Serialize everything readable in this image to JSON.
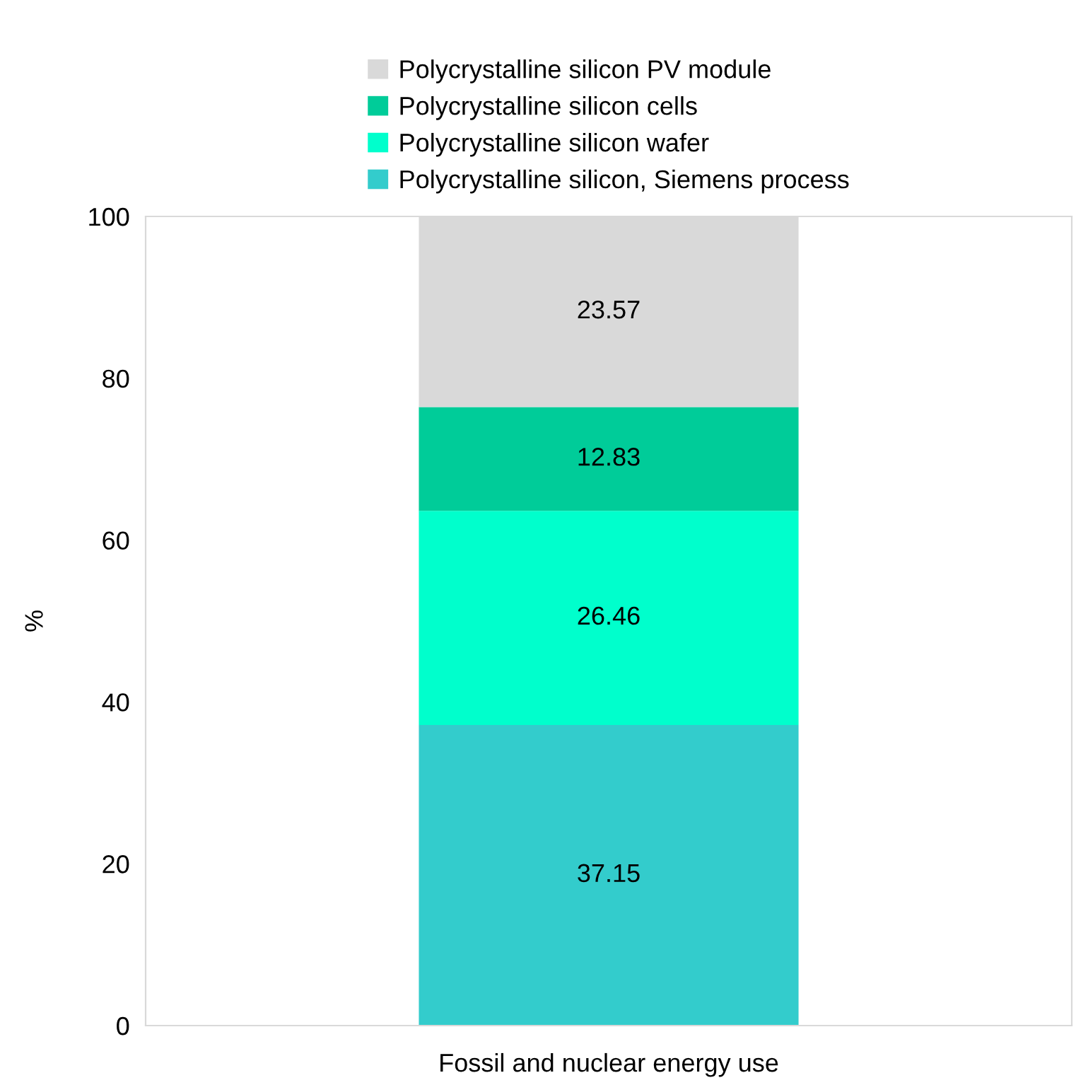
{
  "chart_data": {
    "type": "bar",
    "stacked": true,
    "ylabel": "%",
    "categories": [
      "Fossil and nuclear energy use"
    ],
    "series": [
      {
        "name": "Polycrystalline silicon, Siemens process",
        "color": "#33cccc",
        "values": [
          37.15
        ]
      },
      {
        "name": "Polycrystalline silicon wafer",
        "color": "#00ffcc",
        "values": [
          26.46
        ]
      },
      {
        "name": "Polycrystalline silicon cells",
        "color": "#00cc99",
        "values": [
          12.83
        ]
      },
      {
        "name": "Polycrystalline silicon PV module",
        "color": "#d9d9d9",
        "values": [
          23.57
        ]
      }
    ],
    "ylim": [
      0,
      100
    ],
    "yticks": [
      0,
      20,
      40,
      60,
      80,
      100
    ],
    "grid": false,
    "legend": "top",
    "data_labels": true
  }
}
